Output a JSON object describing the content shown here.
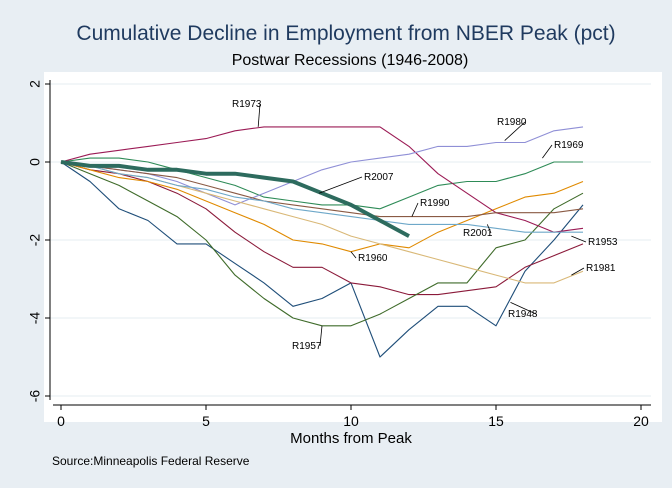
{
  "chart_data": {
    "type": "line",
    "title": "Cumulative Decline in Employment from NBER Peak (pct)",
    "subtitle": "Postwar Recessions (1946-2008)",
    "xlabel": "Months from Peak",
    "ylabel": "",
    "xlim": [
      0,
      20
    ],
    "ylim": [
      -6,
      2
    ],
    "xticks": [
      "0",
      "5",
      "10",
      "15",
      "20"
    ],
    "yticks": [
      "-6",
      "-4",
      "-2",
      "0",
      "2"
    ],
    "grid": "horizontal",
    "note": "Source:Minneapolis Federal Reserve",
    "series": [
      {
        "name": "R1948",
        "color": "#1f4e79",
        "labeled": true,
        "x": [
          0,
          1,
          2,
          3,
          4,
          5,
          6,
          7,
          8,
          9,
          10,
          11,
          12,
          13,
          14,
          15,
          16,
          17,
          18
        ],
        "y": [
          0,
          -0.5,
          -1.2,
          -1.5,
          -2.1,
          -2.1,
          -2.6,
          -3.1,
          -3.7,
          -3.5,
          -3.1,
          -5.0,
          -4.3,
          -3.7,
          -3.7,
          -4.2,
          -2.8,
          -2.0,
          -1.1
        ]
      },
      {
        "name": "R1953",
        "color": "#8b1a3a",
        "labeled": true,
        "x": [
          0,
          1,
          2,
          3,
          4,
          5,
          6,
          7,
          8,
          9,
          10,
          11,
          12,
          13,
          14,
          15,
          16,
          17,
          18
        ],
        "y": [
          0,
          -0.2,
          -0.3,
          -0.5,
          -0.8,
          -1.2,
          -1.8,
          -2.3,
          -2.7,
          -2.7,
          -3.1,
          -3.2,
          -3.4,
          -3.4,
          -3.3,
          -3.2,
          -2.7,
          -2.4,
          -2.1
        ]
      },
      {
        "name": "R1957",
        "color": "#3f6b2a",
        "labeled": true,
        "x": [
          0,
          1,
          2,
          3,
          4,
          5,
          6,
          7,
          8,
          9,
          10,
          11,
          12,
          13,
          14,
          15,
          16,
          17,
          18
        ],
        "y": [
          0,
          -0.3,
          -0.6,
          -1.0,
          -1.4,
          -2.0,
          -2.9,
          -3.5,
          -4.0,
          -4.2,
          -4.2,
          -3.9,
          -3.5,
          -3.1,
          -3.1,
          -2.2,
          -2.0,
          -1.2,
          -0.8
        ]
      },
      {
        "name": "R1960",
        "color": "#e08a00",
        "labeled": true,
        "x": [
          0,
          1,
          2,
          3,
          4,
          5,
          6,
          7,
          8,
          9,
          10,
          11,
          12,
          13,
          14,
          15,
          16,
          17,
          18
        ],
        "y": [
          0,
          -0.2,
          -0.4,
          -0.5,
          -0.7,
          -1.0,
          -1.3,
          -1.6,
          -2.0,
          -2.1,
          -2.3,
          -2.1,
          -2.2,
          -1.8,
          -1.5,
          -1.2,
          -0.9,
          -0.8,
          -0.5
        ]
      },
      {
        "name": "R1969",
        "color": "#2e8b57",
        "labeled": true,
        "x": [
          0,
          1,
          2,
          3,
          4,
          5,
          6,
          7,
          8,
          9,
          10,
          11,
          12,
          13,
          14,
          15,
          16,
          17,
          18
        ],
        "y": [
          0,
          0.1,
          0.1,
          0,
          -0.2,
          -0.4,
          -0.6,
          -0.9,
          -1.0,
          -1.1,
          -1.1,
          -1.2,
          -0.9,
          -0.6,
          -0.5,
          -0.5,
          -0.3,
          0,
          0
        ]
      },
      {
        "name": "R1973",
        "color": "#9b1b55",
        "labeled": true,
        "x": [
          0,
          1,
          2,
          3,
          4,
          5,
          6,
          7,
          8,
          9,
          10,
          11,
          12,
          13,
          14,
          15,
          16,
          17,
          18
        ],
        "y": [
          0,
          0.2,
          0.3,
          0.4,
          0.5,
          0.6,
          0.8,
          0.9,
          0.9,
          0.9,
          0.9,
          0.9,
          0.4,
          -0.3,
          -0.8,
          -1.3,
          -1.5,
          -1.8,
          -1.7
        ]
      },
      {
        "name": "R1980",
        "color": "#8f8fd6",
        "labeled": true,
        "x": [
          0,
          1,
          2,
          3,
          4,
          5,
          6,
          7,
          8,
          9,
          10,
          11,
          12,
          13,
          14,
          15,
          16,
          17,
          18
        ],
        "y": [
          0,
          -0.1,
          -0.2,
          -0.3,
          -0.5,
          -0.8,
          -1.1,
          -0.8,
          -0.5,
          -0.2,
          0,
          0.1,
          0.2,
          0.4,
          0.4,
          0.5,
          0.5,
          0.8,
          0.9
        ]
      },
      {
        "name": "R1981",
        "color": "#d9b877",
        "labeled": true,
        "x": [
          0,
          1,
          2,
          3,
          4,
          5,
          6,
          7,
          8,
          9,
          10,
          11,
          12,
          13,
          14,
          15,
          16,
          17,
          18
        ],
        "y": [
          0,
          -0.1,
          -0.3,
          -0.4,
          -0.6,
          -0.8,
          -1.0,
          -1.2,
          -1.4,
          -1.6,
          -1.9,
          -2.1,
          -2.3,
          -2.5,
          -2.7,
          -2.9,
          -3.1,
          -3.1,
          -2.8
        ]
      },
      {
        "name": "R1990",
        "color": "#8a5a44",
        "labeled": true,
        "x": [
          0,
          1,
          2,
          3,
          4,
          5,
          6,
          7,
          8,
          9,
          10,
          11,
          12,
          13,
          14,
          15,
          16,
          17,
          18
        ],
        "y": [
          0,
          -0.1,
          -0.2,
          -0.3,
          -0.4,
          -0.6,
          -0.8,
          -1.0,
          -1.1,
          -1.2,
          -1.3,
          -1.4,
          -1.4,
          -1.4,
          -1.4,
          -1.3,
          -1.3,
          -1.3,
          -1.2
        ]
      },
      {
        "name": "R2001",
        "color": "#6ea8c9",
        "labeled": true,
        "x": [
          0,
          1,
          2,
          3,
          4,
          5,
          6,
          7,
          8,
          9,
          10,
          11,
          12,
          13,
          14,
          15,
          16,
          17,
          18
        ],
        "y": [
          0,
          -0.1,
          -0.3,
          -0.4,
          -0.6,
          -0.7,
          -0.9,
          -1.0,
          -1.2,
          -1.3,
          -1.4,
          -1.5,
          -1.6,
          -1.6,
          -1.6,
          -1.7,
          -1.8,
          -1.8,
          -1.8
        ]
      },
      {
        "name": "R2007",
        "color": "#2d6b5e",
        "labeled": true,
        "emphasis": true,
        "x": [
          0,
          1,
          2,
          3,
          4,
          5,
          6,
          7,
          8,
          9,
          10,
          11,
          12
        ],
        "y": [
          0,
          -0.1,
          -0.1,
          -0.2,
          -0.2,
          -0.3,
          -0.3,
          -0.4,
          -0.5,
          -0.8,
          -1.1,
          -1.5,
          -1.9
        ]
      }
    ]
  }
}
